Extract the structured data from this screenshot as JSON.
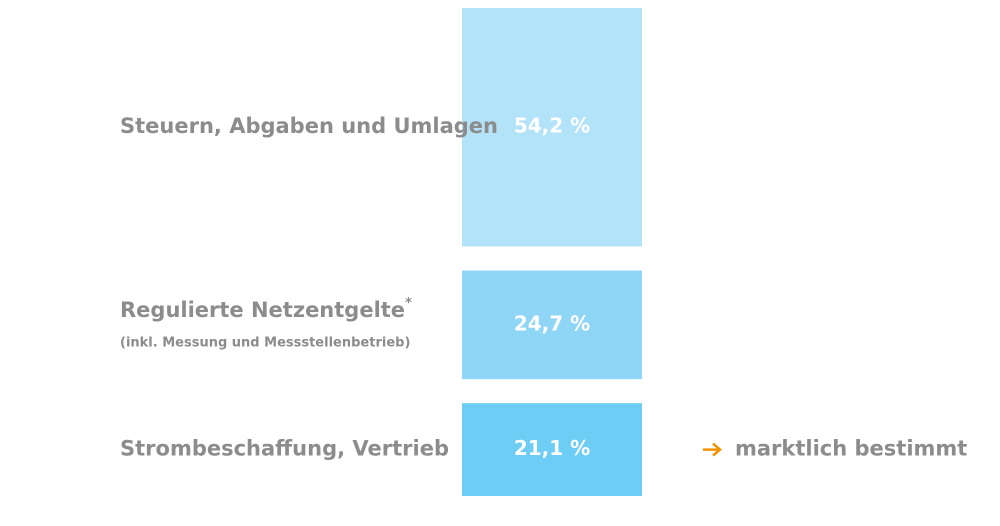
{
  "chart_data": {
    "type": "stacked-blocks",
    "categories": [
      "Steuern, Abgaben und Umlagen",
      "Regulierte Netzentgelte",
      "Strombeschaffung, Vertrieb"
    ],
    "category_marks": [
      null,
      "*",
      null
    ],
    "category_notes": [
      null,
      "(inkl. Messung und Messstellenbetrieb)",
      null
    ],
    "values": [
      54.2,
      24.7,
      21.1
    ],
    "value_labels": [
      "54,2 %",
      "24,7 %",
      "21,1 %"
    ],
    "colors": [
      "#b3e3f9",
      "#8fd6f6",
      "#6dcdf5"
    ],
    "annotations": [
      {
        "category_index": 2,
        "text": "marktlich bestimmt",
        "color": "#f39200"
      }
    ]
  }
}
